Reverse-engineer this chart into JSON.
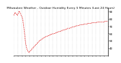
{
  "title": "Milwaukee Weather - Outdoor Humidity Every 5 Minutes (Last 24 Hours)",
  "ylim": [
    30,
    95
  ],
  "yticks": [
    40,
    50,
    60,
    70,
    80,
    90
  ],
  "line_color": "#dd0000",
  "background_color": "#ffffff",
  "grid_color": "#aaaaaa",
  "humidity": [
    85,
    86,
    87,
    88,
    89,
    89,
    88,
    87,
    87,
    86,
    85,
    85,
    86,
    87,
    88,
    89,
    90,
    91,
    90,
    89,
    88,
    87,
    86,
    85,
    84,
    83,
    82,
    80,
    78,
    75,
    72,
    68,
    64,
    60,
    56,
    52,
    48,
    45,
    43,
    41,
    39,
    38,
    37,
    36,
    35,
    35,
    34,
    34,
    35,
    35,
    36,
    36,
    37,
    37,
    38,
    38,
    39,
    39,
    40,
    40,
    41,
    41,
    42,
    42,
    43,
    43,
    44,
    44,
    45,
    45,
    46,
    46,
    47,
    47,
    48,
    48,
    49,
    49,
    50,
    50,
    50,
    51,
    51,
    51,
    52,
    52,
    52,
    53,
    53,
    53,
    54,
    54,
    54,
    54,
    55,
    55,
    55,
    55,
    56,
    56,
    56,
    56,
    56,
    57,
    57,
    57,
    57,
    57,
    58,
    58,
    58,
    58,
    58,
    58,
    59,
    59,
    59,
    59,
    59,
    59,
    60,
    60,
    60,
    60,
    60,
    60,
    61,
    61,
    61,
    61,
    61,
    61,
    62,
    62,
    62,
    62,
    62,
    62,
    63,
    63,
    63,
    63,
    63,
    63,
    64,
    64,
    64,
    64,
    64,
    64,
    65,
    65,
    65,
    65,
    65,
    65,
    65,
    66,
    66,
    66,
    66,
    66,
    66,
    66,
    67,
    67,
    67,
    67,
    67,
    67,
    67,
    68,
    68,
    68,
    68,
    68,
    68,
    68,
    69,
    69,
    69,
    69,
    69,
    69,
    69,
    70,
    70,
    70,
    70,
    70,
    70,
    70,
    70,
    71,
    71,
    71,
    71,
    71,
    71,
    71,
    71,
    71,
    72,
    72,
    72,
    72,
    72,
    72,
    72,
    72,
    72,
    72,
    72,
    73,
    73,
    73,
    73,
    73,
    73,
    73,
    73,
    73,
    73,
    73,
    73,
    74,
    74,
    74,
    74,
    74,
    74,
    74,
    74,
    74,
    74,
    74,
    74,
    74,
    75,
    75,
    75,
    75,
    75,
    75,
    75,
    75,
    75,
    75,
    75,
    75,
    75,
    75,
    75,
    75,
    76,
    76,
    76,
    76,
    76,
    76,
    76,
    76,
    76,
    76,
    76,
    76,
    76,
    76,
    76,
    76,
    76,
    76,
    76,
    76,
    76,
    76,
    76,
    76,
    77,
    77,
    77,
    77,
    77,
    77,
    77,
    77,
    77,
    77
  ],
  "num_xgrid": 24,
  "title_fontsize": 3.2,
  "tick_fontsize": 3.0,
  "linewidth": 0.55,
  "dash_on": 2.0,
  "dash_off": 1.5
}
